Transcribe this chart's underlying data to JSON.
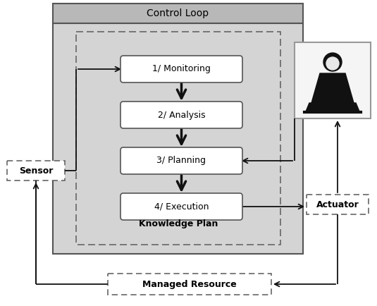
{
  "title": "Control Loop",
  "knowledge_label": "Knowledge Plan",
  "managed_resource_label": "Managed Resource",
  "sensor_label": "Sensor",
  "actuator_label": "Actuator",
  "steps": [
    "1/ Monitoring",
    "2/ Analysis",
    "3/ Planning",
    "4/ Execution"
  ],
  "bg_color": "#d4d4d4",
  "header_color": "#b8b8b8",
  "box_fill": "#ffffff",
  "arrow_color": "#111111",
  "font_color": "#000000",
  "figure_bg": "#ffffff",
  "edge_color": "#555555",
  "dashed_color": "#666666"
}
